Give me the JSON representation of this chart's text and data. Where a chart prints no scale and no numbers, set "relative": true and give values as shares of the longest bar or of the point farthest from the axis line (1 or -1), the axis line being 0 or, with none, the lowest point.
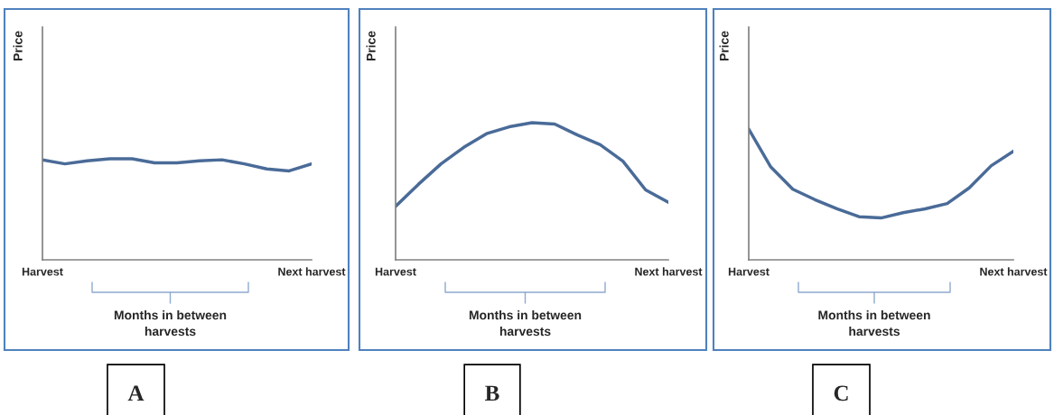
{
  "chart_data": [
    {
      "type": "line",
      "ylabel": "Price",
      "xlabel": "Months in between harvests",
      "relative": true,
      "tick_labels": "x",
      "categories": [
        "Harvest",
        null,
        null,
        null,
        null,
        null,
        null,
        null,
        null,
        null,
        null,
        null,
        "Next harvest"
      ],
      "series": [
        {
          "color": "#4a6b98",
          "values": [
            0.99,
            0.95,
            0.98,
            1,
            1,
            0.96,
            0.96,
            0.98,
            0.99,
            0.95,
            0.9,
            0.88,
            0.95
          ]
        }
      ],
      "annotations": [
        "A"
      ]
    },
    {
      "type": "line",
      "ylabel": "Price",
      "xlabel": "Months in between harvests",
      "relative": true,
      "tick_labels": "x",
      "categories": [
        "Harvest",
        null,
        null,
        null,
        null,
        null,
        null,
        null,
        null,
        null,
        null,
        null,
        "Next harvest"
      ],
      "series": [
        {
          "color": "#4a6b98",
          "values": [
            0.39,
            0.55,
            0.7,
            0.82,
            0.92,
            0.97,
            1,
            0.99,
            0.91,
            0.84,
            0.72,
            0.51,
            0.42
          ]
        }
      ],
      "annotations": [
        "B"
      ]
    },
    {
      "type": "line",
      "ylabel": "Price",
      "xlabel": "Months in between harvests",
      "relative": true,
      "tick_labels": "x",
      "categories": [
        "Harvest",
        null,
        null,
        null,
        null,
        null,
        null,
        null,
        null,
        null,
        null,
        null,
        "Next harvest"
      ],
      "series": [
        {
          "color": "#4a6b98",
          "values": [
            1,
            0.71,
            0.54,
            0.46,
            0.39,
            0.33,
            0.32,
            0.36,
            0.39,
            0.43,
            0.55,
            0.72,
            0.83
          ]
        }
      ],
      "annotations": [
        "C"
      ]
    }
  ]
}
